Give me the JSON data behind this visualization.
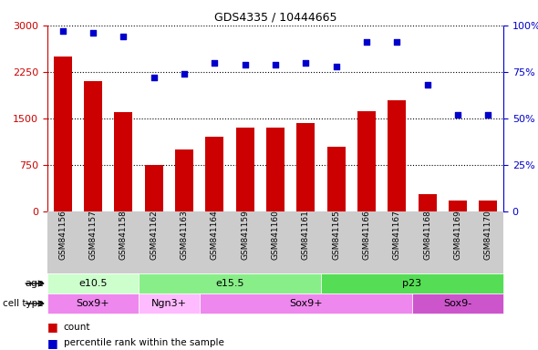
{
  "title": "GDS4335 / 10444665",
  "samples": [
    "GSM841156",
    "GSM841157",
    "GSM841158",
    "GSM841162",
    "GSM841163",
    "GSM841164",
    "GSM841159",
    "GSM841160",
    "GSM841161",
    "GSM841165",
    "GSM841166",
    "GSM841167",
    "GSM841168",
    "GSM841169",
    "GSM841170"
  ],
  "counts": [
    2500,
    2100,
    1600,
    750,
    1000,
    1200,
    1350,
    1350,
    1430,
    1050,
    1620,
    1800,
    280,
    170,
    175
  ],
  "percentile": [
    97,
    96,
    94,
    72,
    74,
    80,
    79,
    79,
    80,
    78,
    91,
    91,
    68,
    52,
    52
  ],
  "bar_color": "#cc0000",
  "dot_color": "#0000cc",
  "yticks_left": [
    0,
    750,
    1500,
    2250,
    3000
  ],
  "yticks_right": [
    0,
    25,
    50,
    75,
    100
  ],
  "ylim_left": [
    0,
    3000
  ],
  "ylim_right": [
    0,
    100
  ],
  "age_groups": [
    {
      "label": "e10.5",
      "start": 0,
      "end": 3,
      "color": "#ccffcc"
    },
    {
      "label": "e15.5",
      "start": 3,
      "end": 9,
      "color": "#88ee88"
    },
    {
      "label": "p23",
      "start": 9,
      "end": 15,
      "color": "#55dd55"
    }
  ],
  "cell_groups": [
    {
      "label": "Sox9+",
      "start": 0,
      "end": 3,
      "color": "#ee88ee"
    },
    {
      "label": "Ngn3+",
      "start": 3,
      "end": 5,
      "color": "#ffbbff"
    },
    {
      "label": "Sox9+",
      "start": 5,
      "end": 12,
      "color": "#ee88ee"
    },
    {
      "label": "Sox9-",
      "start": 12,
      "end": 15,
      "color": "#cc55cc"
    }
  ],
  "legend_count_color": "#cc0000",
  "legend_pct_color": "#0000cc",
  "bg_color": "#ffffff",
  "xtick_bg_color": "#cccccc",
  "right_axis_color": "#0000cc",
  "left_axis_color": "#cc0000"
}
